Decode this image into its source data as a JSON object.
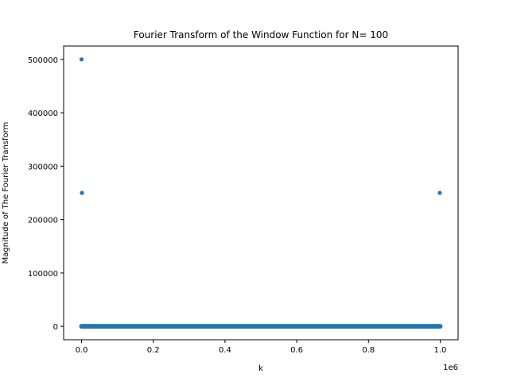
{
  "chart_data": {
    "type": "scatter",
    "title": "Fourier Transform of the Window Function for N= 100",
    "xlabel": "k",
    "ylabel": "Magnitude of The Fourier Transform",
    "x_offset_text": "1e6",
    "xlim": [
      -50000,
      1050000
    ],
    "ylim": [
      -25000,
      525000
    ],
    "x_ticks": [
      0,
      200000,
      400000,
      600000,
      800000,
      1000000
    ],
    "x_tick_labels": [
      "0.0",
      "0.2",
      "0.4",
      "0.6",
      "0.8",
      "1.0"
    ],
    "y_ticks": [
      0,
      100000,
      200000,
      300000,
      400000,
      500000
    ],
    "y_tick_labels": [
      "0",
      "100000",
      "200000",
      "300000",
      "400000",
      "500000"
    ],
    "grid": false,
    "marker_color": "#1f77b4",
    "series": [
      {
        "points": [
          {
            "x": 0,
            "y": 500000
          },
          {
            "x": 1000,
            "y": 250000
          },
          {
            "x": 999000,
            "y": 250000
          }
        ],
        "baseline": {
          "x_start": 0,
          "x_end": 1000000,
          "y": 0
        }
      }
    ]
  }
}
